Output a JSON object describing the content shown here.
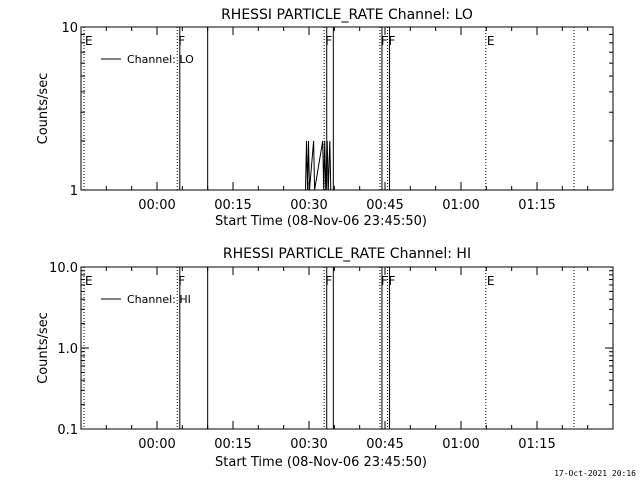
{
  "timestamp": "17-Oct-2021 20:16",
  "colors": {
    "background": "#ffffff",
    "foreground": "#000000"
  },
  "chart_data": [
    {
      "type": "line",
      "title": "RHESSI PARTICLE_RATE Channel: LO",
      "xlabel": "Start Time (08-Nov-06 23:45:50)",
      "ylabel": "Counts/sec",
      "y_scale": "log",
      "ylim": [
        1,
        10
      ],
      "yticks": [
        {
          "value": 1,
          "label": "1"
        },
        {
          "value": 10,
          "label": "10"
        }
      ],
      "xlim_minutes": [
        -15,
        90
      ],
      "xticks": [
        {
          "minutes": 0,
          "label": "00:00"
        },
        {
          "minutes": 15,
          "label": "00:15"
        },
        {
          "minutes": 30,
          "label": "00:30"
        },
        {
          "minutes": 45,
          "label": "00:45"
        },
        {
          "minutes": 60,
          "label": "01:00"
        },
        {
          "minutes": 75,
          "label": "01:15"
        }
      ],
      "legend": {
        "position": "top-left",
        "entries": [
          "Channel: LO"
        ]
      },
      "series": [
        {
          "name": "Channel: LO",
          "points": [
            {
              "t": 29.3,
              "y": 1
            },
            {
              "t": 29.5,
              "y": 2
            },
            {
              "t": 29.7,
              "y": 1
            },
            {
              "t": 29.9,
              "y": 2
            },
            {
              "t": 30.1,
              "y": 1
            },
            {
              "t": 30.9,
              "y": 2
            },
            {
              "t": 31.1,
              "y": 1
            },
            {
              "t": 32.7,
              "y": 2
            },
            {
              "t": 32.9,
              "y": 1
            },
            {
              "t": 33.1,
              "y": 2
            },
            {
              "t": 33.3,
              "y": 1
            },
            {
              "t": 33.6,
              "y": 2
            },
            {
              "t": 33.8,
              "y": 1
            },
            {
              "t": 34.1,
              "y": 2
            },
            {
              "t": 34.3,
              "y": 1
            }
          ]
        }
      ],
      "markers": [
        {
          "minutes": -15,
          "label": "E",
          "style": "dotted"
        },
        {
          "minutes": 4,
          "label": "F",
          "style": "dotted"
        },
        {
          "minutes": 4.5,
          "label": "",
          "style": "solid"
        },
        {
          "minutes": 10,
          "label": "",
          "style": "solid"
        },
        {
          "minutes": 33,
          "label": "F",
          "style": "dotted"
        },
        {
          "minutes": 33.5,
          "label": "",
          "style": "solid"
        },
        {
          "minutes": 34.8,
          "label": "",
          "style": "solid"
        },
        {
          "minutes": 44,
          "label": "F",
          "style": "dotted"
        },
        {
          "minutes": 44.4,
          "label": "",
          "style": "solid"
        },
        {
          "minutes": 45.5,
          "label": "F",
          "style": "dotted"
        },
        {
          "minutes": 45.9,
          "label": "",
          "style": "solid"
        },
        {
          "minutes": 64.9,
          "label": "E",
          "style": "dotted"
        },
        {
          "minutes": 82.3,
          "label": "",
          "style": "dotted"
        }
      ]
    },
    {
      "type": "line",
      "title": "RHESSI PARTICLE_RATE Channel: HI",
      "xlabel": "Start Time (08-Nov-06 23:45:50)",
      "ylabel": "Counts/sec",
      "y_scale": "log",
      "ylim": [
        0.1,
        10
      ],
      "yticks": [
        {
          "value": 0.1,
          "label": "0.1"
        },
        {
          "value": 1,
          "label": "1.0"
        },
        {
          "value": 10,
          "label": "10.0"
        }
      ],
      "xlim_minutes": [
        -15,
        90
      ],
      "xticks": [
        {
          "minutes": 0,
          "label": "00:00"
        },
        {
          "minutes": 15,
          "label": "00:15"
        },
        {
          "minutes": 30,
          "label": "00:30"
        },
        {
          "minutes": 45,
          "label": "00:45"
        },
        {
          "minutes": 60,
          "label": "01:00"
        },
        {
          "minutes": 75,
          "label": "01:15"
        }
      ],
      "legend": {
        "position": "top-left",
        "entries": [
          "Channel: HI"
        ]
      },
      "series": [
        {
          "name": "Channel: HI",
          "points": []
        }
      ],
      "markers": [
        {
          "minutes": -15,
          "label": "E",
          "style": "dotted"
        },
        {
          "minutes": 4,
          "label": "F",
          "style": "dotted"
        },
        {
          "minutes": 4.5,
          "label": "",
          "style": "solid"
        },
        {
          "minutes": 10,
          "label": "",
          "style": "solid"
        },
        {
          "minutes": 33,
          "label": "F",
          "style": "dotted"
        },
        {
          "minutes": 33.5,
          "label": "",
          "style": "solid"
        },
        {
          "minutes": 34.8,
          "label": "",
          "style": "solid"
        },
        {
          "minutes": 44,
          "label": "F",
          "style": "dotted"
        },
        {
          "minutes": 44.4,
          "label": "",
          "style": "solid"
        },
        {
          "minutes": 45.5,
          "label": "F",
          "style": "dotted"
        },
        {
          "minutes": 45.9,
          "label": "",
          "style": "solid"
        },
        {
          "minutes": 64.9,
          "label": "E",
          "style": "dotted"
        },
        {
          "minutes": 82.3,
          "label": "",
          "style": "dotted"
        }
      ]
    }
  ]
}
